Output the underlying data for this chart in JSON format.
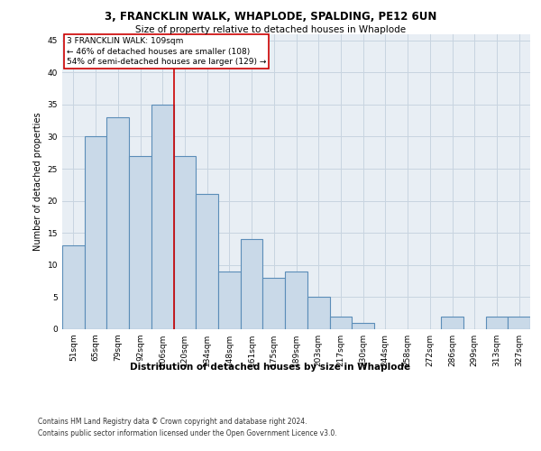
{
  "title1": "3, FRANCKLIN WALK, WHAPLODE, SPALDING, PE12 6UN",
  "title2": "Size of property relative to detached houses in Whaplode",
  "xlabel": "Distribution of detached houses by size in Whaplode",
  "ylabel": "Number of detached properties",
  "categories": [
    "51sqm",
    "65sqm",
    "79sqm",
    "92sqm",
    "106sqm",
    "120sqm",
    "134sqm",
    "148sqm",
    "161sqm",
    "175sqm",
    "189sqm",
    "203sqm",
    "217sqm",
    "230sqm",
    "244sqm",
    "258sqm",
    "272sqm",
    "286sqm",
    "299sqm",
    "313sqm",
    "327sqm"
  ],
  "values": [
    13,
    30,
    33,
    27,
    35,
    27,
    21,
    9,
    14,
    8,
    9,
    5,
    2,
    1,
    0,
    0,
    0,
    2,
    0,
    2,
    2
  ],
  "bar_color": "#c9d9e8",
  "bar_edge_color": "#5b8db8",
  "bar_linewidth": 0.8,
  "vline_x": 4.5,
  "vline_color": "#cc0000",
  "vline_linewidth": 1.2,
  "annotation_text": "3 FRANCKLIN WALK: 109sqm\n← 46% of detached houses are smaller (108)\n54% of semi-detached houses are larger (129) →",
  "annotation_box_color": "#cc0000",
  "annotation_bg": "#ffffff",
  "ylim": [
    0,
    46
  ],
  "yticks": [
    0,
    5,
    10,
    15,
    20,
    25,
    30,
    35,
    40,
    45
  ],
  "grid_color": "#c8d4e0",
  "background_color": "#e8eef4",
  "footer_line1": "Contains HM Land Registry data © Crown copyright and database right 2024.",
  "footer_line2": "Contains public sector information licensed under the Open Government Licence v3.0.",
  "title1_fontsize": 8.5,
  "title2_fontsize": 7.5,
  "xlabel_fontsize": 7.5,
  "ylabel_fontsize": 7,
  "tick_fontsize": 6.5,
  "annotation_fontsize": 6.5,
  "footer_fontsize": 5.5
}
